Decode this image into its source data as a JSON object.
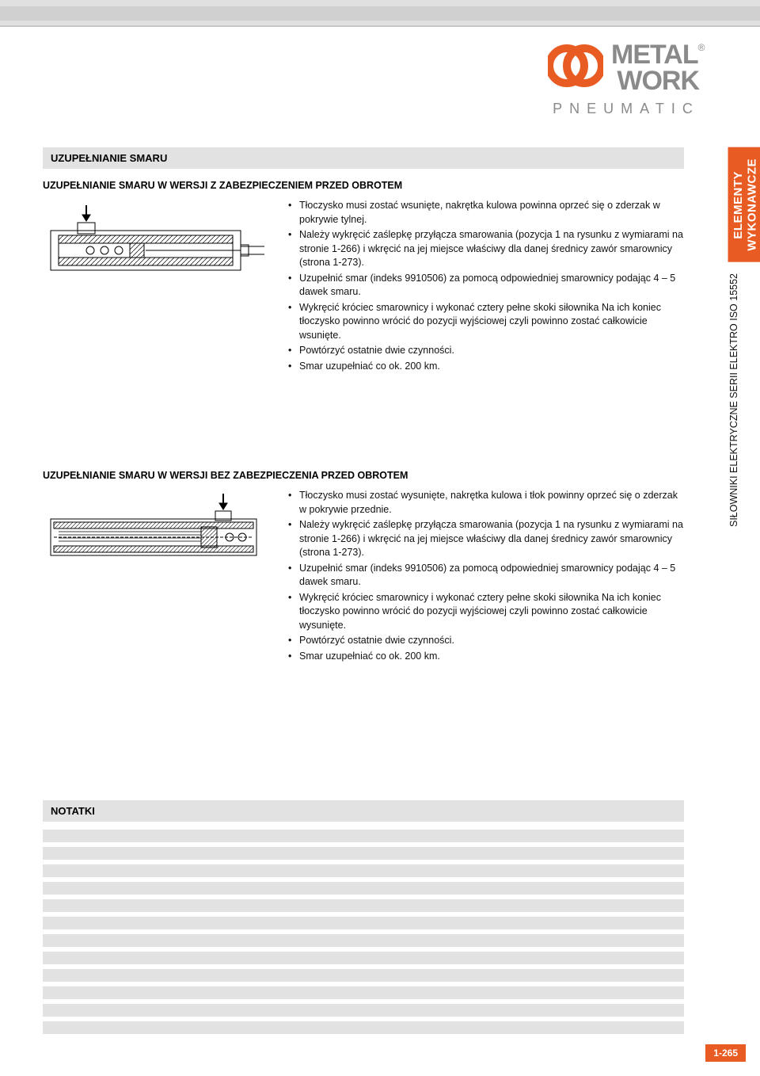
{
  "logo": {
    "line1": "METAL",
    "line2": "WORK",
    "reg": "®",
    "sub": "PNEUMATIC",
    "mark_color": "#e85c24",
    "text_color": "#8a8a8a"
  },
  "side_tab": {
    "orange_line1": "ELEMENTY",
    "orange_line2": "WYKONAWCZE",
    "vertical_text": "SIŁOWNIKI ELEKTRYCZNE SERII ELEKTRO ISO 15552",
    "bg_color": "#e85c24"
  },
  "main_heading": "UZUPEŁNIANIE SMARU",
  "section1": {
    "heading": "UZUPEŁNIANIE SMARU W WERSJI Z ZABEZPIECZENIEM PRZED OBROTEM",
    "bullets": [
      "Tłoczysko musi zostać wsunięte, nakrętka kulowa powinna oprzeć się o zderzak w pokrywie tylnej.",
      "Należy wykręcić zaślepkę przyłącza smarowania (pozycja 1 na rysunku z wymiarami na stronie 1-266) i wkręcić na jej miejsce właściwy dla danej średnicy zawór smarownicy (strona 1-273).",
      "Uzupełnić smar (indeks 9910506) za pomocą odpowiedniej smarownicy podając  4 – 5 dawek smaru.",
      "Wykręcić króciec smarownicy i wykonać cztery pełne skoki siłownika Na ich koniec tłoczysko powinno wrócić do pozycji wyjściowej czyli powinno zostać całkowicie wsunięte.",
      "Powtórzyć ostatnie dwie czynności.",
      "Smar uzupełniać co ok. 200 km."
    ]
  },
  "section2": {
    "heading": "UZUPEŁNIANIE SMARU W WERSJI BEZ ZABEZPIECZENIA PRZED OBROTEM",
    "bullets": [
      "Tłoczysko musi zostać wysunięte, nakrętka kulowa i tłok powinny oprzeć się o zderzak w pokrywie przednie.",
      "Należy wykręcić zaślepkę przyłącza smarowania (pozycja 1 na rysunku z wymiarami na stronie 1-266) i wkręcić na jej  miejsce właściwy dla danej średnicy zawór smarownicy (strona 1-273).",
      "Uzupełnić smar (indeks 9910506) za pomocą odpowiedniej smarownicy podając  4 – 5 dawek smaru.",
      "Wykręcić króciec smarownicy i wykonać cztery pełne skoki siłownika Na ich koniec tłoczysko powinno wrócić do pozycji wyjściowej czyli powinno zostać całkowicie wysunięte.",
      "Powtórzyć ostatnie dwie czynności.",
      "Smar uzupełniać co ok. 200 km."
    ]
  },
  "notes": {
    "heading": "NOTATKI",
    "line_count": 12,
    "line_color": "#e2e2e2"
  },
  "page_number": "1-265",
  "colors": {
    "section_bg": "#e2e2e2",
    "accent": "#e85c24"
  }
}
